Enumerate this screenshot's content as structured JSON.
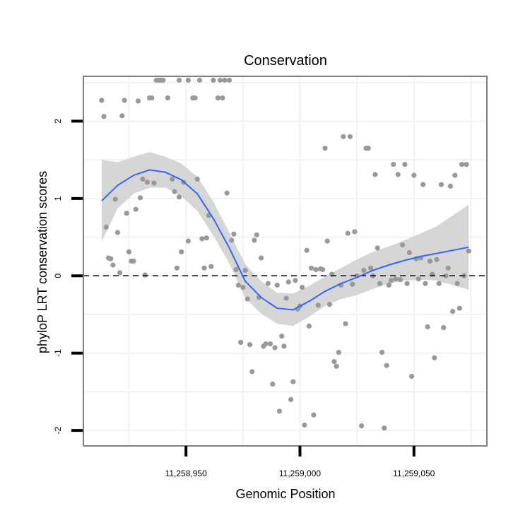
{
  "chart_data": {
    "type": "scatter",
    "title": "Conservation",
    "xlabel": "Genomic Position",
    "ylabel": "phyloP LRT conservation scores",
    "xlim": [
      11258905,
      11259082
    ],
    "ylim": [
      -2.2,
      2.58
    ],
    "x_ticks": [
      {
        "value": 11258950,
        "label": "11,258,950"
      },
      {
        "value": 11259000,
        "label": "11,259,000"
      },
      {
        "value": 11259050,
        "label": "11,259,050"
      }
    ],
    "y_ticks": [
      {
        "value": -2,
        "label": "-2"
      },
      {
        "value": -1,
        "label": "-1"
      },
      {
        "value": 0,
        "label": "0"
      },
      {
        "value": 1,
        "label": "1"
      },
      {
        "value": 2,
        "label": "2"
      }
    ],
    "grid": true,
    "reference_line": {
      "y": 0,
      "style": "dashed",
      "color": "#000000"
    },
    "colors": {
      "points": "#999999",
      "smooth": "#3366ff",
      "ribbon": "#d6d6d6",
      "panel_border": "#7f7f7f",
      "grid": "#f2f2f2"
    },
    "points": [
      [
        11258913,
        2.27
      ],
      [
        11258914,
        2.06
      ],
      [
        11258915,
        0.63
      ],
      [
        11258916,
        0.23
      ],
      [
        11258917,
        0.22
      ],
      [
        11258918,
        0.14
      ],
      [
        11258919,
        0.99
      ],
      [
        11258920,
        0.56
      ],
      [
        11258921,
        0.04
      ],
      [
        11258922,
        2.07
      ],
      [
        11258923,
        2.27
      ],
      [
        11258924,
        0.81
      ],
      [
        11258925,
        0.31
      ],
      [
        11258926,
        0.19
      ],
      [
        11258927,
        0.19
      ],
      [
        11258928,
        0.86
      ],
      [
        11258929,
        2.26
      ],
      [
        11258930,
        1.01
      ],
      [
        11258931,
        1.25
      ],
      [
        11258932,
        0.01
      ],
      [
        11258933,
        1.21
      ],
      [
        11258934,
        2.3
      ],
      [
        11258935,
        2.3
      ],
      [
        11258936,
        1.2
      ],
      [
        11258937,
        2.53
      ],
      [
        11258938,
        2.53
      ],
      [
        11258939,
        2.53
      ],
      [
        11258940,
        2.53
      ],
      [
        11258942,
        2.3
      ],
      [
        11258944,
        1.25
      ],
      [
        11258945,
        1.09
      ],
      [
        11258946,
        0.1
      ],
      [
        11258947,
        1.02
      ],
      [
        11258947,
        2.53
      ],
      [
        11258948,
        0.31
      ],
      [
        11258949,
        1.21
      ],
      [
        11258951,
        2.53
      ],
      [
        11258951,
        0.45
      ],
      [
        11258953,
        2.3
      ],
      [
        11258954,
        2.3
      ],
      [
        11258955,
        1.25
      ],
      [
        11258956,
        2.53
      ],
      [
        11258957,
        0.48
      ],
      [
        11258958,
        0.1
      ],
      [
        11258959,
        0.49
      ],
      [
        11258960,
        0.78
      ],
      [
        11258961,
        0.12
      ],
      [
        11258962,
        2.53
      ],
      [
        11258964,
        2.3
      ],
      [
        11258965,
        2.53
      ],
      [
        11258966,
        2.3
      ],
      [
        11258967,
        2.53
      ],
      [
        11258968,
        1.07
      ],
      [
        11258969,
        2.53
      ],
      [
        11258970,
        0.46
      ],
      [
        11258971,
        0.54
      ],
      [
        11258972,
        0.08
      ],
      [
        11258973,
        -0.12
      ],
      [
        11258974,
        -0.86
      ],
      [
        11258975,
        -0.15
      ],
      [
        11258976,
        0.07
      ],
      [
        11258977,
        -0.3
      ],
      [
        11258978,
        -0.89
      ],
      [
        11258979,
        -1.24
      ],
      [
        11258980,
        0.46
      ],
      [
        11258981,
        0.53
      ],
      [
        11258982,
        -0.28
      ],
      [
        11258983,
        0.23
      ],
      [
        11258984,
        -0.91
      ],
      [
        11258985,
        -0.88
      ],
      [
        11258986,
        -0.1
      ],
      [
        11258987,
        -0.88
      ],
      [
        11258988,
        -1.4
      ],
      [
        11258989,
        -0.93
      ],
      [
        11258990,
        -0.12
      ],
      [
        11258991,
        -1.75
      ],
      [
        11258992,
        -0.78
      ],
      [
        11258993,
        -0.91
      ],
      [
        11258994,
        -0.29
      ],
      [
        11258995,
        -0.08
      ],
      [
        11258996,
        -1.6
      ],
      [
        11258997,
        -1.37
      ],
      [
        11258998,
        -0.06
      ],
      [
        11258999,
        -0.43
      ],
      [
        11259000,
        -0.39
      ],
      [
        11259001,
        -0.15
      ],
      [
        11259002,
        -1.93
      ],
      [
        11259003,
        0.33
      ],
      [
        11259004,
        -0.65
      ],
      [
        11259005,
        0.1
      ],
      [
        11259006,
        -1.8
      ],
      [
        11259007,
        0.08
      ],
      [
        11259008,
        -0.38
      ],
      [
        11259009,
        0.09
      ],
      [
        11259010,
        0.08
      ],
      [
        11259011,
        1.65
      ],
      [
        11259012,
        0.45
      ],
      [
        11259013,
        -0.37
      ],
      [
        11259014,
        0.02
      ],
      [
        11259015,
        -1.11
      ],
      [
        11259016,
        -1.17
      ],
      [
        11259017,
        -0.99
      ],
      [
        11259018,
        -0.12
      ],
      [
        11259019,
        1.8
      ],
      [
        11259020,
        -0.62
      ],
      [
        11259021,
        0.55
      ],
      [
        11259022,
        1.8
      ],
      [
        11259023,
        -0.11
      ],
      [
        11259024,
        0.57
      ],
      [
        11259025,
        0.0
      ],
      [
        11259027,
        -1.94
      ],
      [
        11259028,
        0.07
      ],
      [
        11259029,
        1.65
      ],
      [
        11259030,
        1.65
      ],
      [
        11259031,
        0.1
      ],
      [
        11259032,
        0.0
      ],
      [
        11259033,
        1.31
      ],
      [
        11259034,
        0.36
      ],
      [
        11259035,
        -0.1
      ],
      [
        11259036,
        -0.99
      ],
      [
        11259037,
        -1.97
      ],
      [
        11259038,
        -1.16
      ],
      [
        11259039,
        -0.12
      ],
      [
        11259040,
        -0.06
      ],
      [
        11259041,
        1.44
      ],
      [
        11259042,
        -0.04
      ],
      [
        11259043,
        1.31
      ],
      [
        11259044,
        -0.05
      ],
      [
        11259045,
        0.4
      ],
      [
        11259046,
        1.44
      ],
      [
        11259047,
        -0.1
      ],
      [
        11259048,
        0.3
      ],
      [
        11259049,
        -1.3
      ],
      [
        11259050,
        1.3
      ],
      [
        11259051,
        0.22
      ],
      [
        11259052,
        -0.04
      ],
      [
        11259053,
        0.23
      ],
      [
        11259054,
        1.18
      ],
      [
        11259055,
        -0.1
      ],
      [
        11259056,
        -0.66
      ],
      [
        11259057,
        0.19
      ],
      [
        11259058,
        0.02
      ],
      [
        11259059,
        -1.06
      ],
      [
        11259060,
        0.21
      ],
      [
        11259061,
        -0.1
      ],
      [
        11259062,
        1.18
      ],
      [
        11259063,
        -0.67
      ],
      [
        11259064,
        0.0
      ],
      [
        11259065,
        0.1
      ],
      [
        11259066,
        1.16
      ],
      [
        11259067,
        -0.46
      ],
      [
        11259068,
        1.3
      ],
      [
        11259069,
        -0.1
      ],
      [
        11259070,
        -0.42
      ],
      [
        11259071,
        1.44
      ],
      [
        11259072,
        0.0
      ],
      [
        11259073,
        1.44
      ],
      [
        11259074,
        0.32
      ]
    ],
    "smooth": {
      "method": "loess",
      "x": [
        11258913,
        11258920,
        11258927,
        11258934,
        11258941,
        11258948,
        11258955,
        11258962,
        11258969,
        11258976,
        11258983,
        11258990,
        11258997,
        11259004,
        11259011,
        11259018,
        11259025,
        11259032,
        11259039,
        11259046,
        11259053,
        11259060,
        11259067,
        11259074
      ],
      "y": [
        0.97,
        1.17,
        1.3,
        1.37,
        1.34,
        1.24,
        1.06,
        0.74,
        0.36,
        -0.07,
        -0.28,
        -0.42,
        -0.44,
        -0.33,
        -0.2,
        -0.1,
        -0.02,
        0.07,
        0.14,
        0.2,
        0.25,
        0.29,
        0.33,
        0.37
      ],
      "lower": [
        0.44,
        0.87,
        1.06,
        1.14,
        1.14,
        1.03,
        0.84,
        0.52,
        0.16,
        -0.29,
        -0.49,
        -0.62,
        -0.65,
        -0.53,
        -0.39,
        -0.3,
        -0.25,
        -0.17,
        -0.1,
        -0.06,
        -0.05,
        -0.06,
        -0.12,
        -0.18
      ],
      "upper": [
        1.5,
        1.47,
        1.54,
        1.6,
        1.54,
        1.45,
        1.28,
        0.96,
        0.56,
        0.15,
        -0.07,
        -0.22,
        -0.23,
        -0.13,
        -0.01,
        0.1,
        0.21,
        0.31,
        0.38,
        0.46,
        0.55,
        0.64,
        0.78,
        0.92
      ]
    }
  }
}
